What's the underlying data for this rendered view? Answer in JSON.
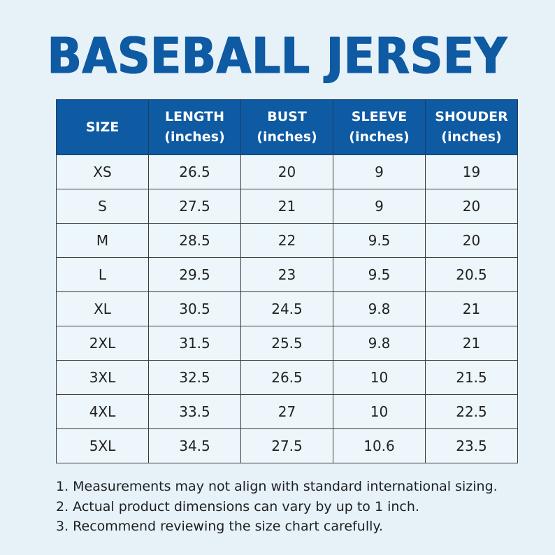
{
  "title": "BASEBALL JERSEY",
  "table": {
    "headers": [
      {
        "label": "SIZE",
        "unit": ""
      },
      {
        "label": "LENGTH",
        "unit": "(inches)"
      },
      {
        "label": "BUST",
        "unit": "(inches)"
      },
      {
        "label": "SLEEVE",
        "unit": "(inches)"
      },
      {
        "label": "SHOUDER",
        "unit": "(inches)"
      }
    ],
    "rows": [
      [
        "XS",
        "26.5",
        "20",
        "9",
        "19"
      ],
      [
        "S",
        "27.5",
        "21",
        "9",
        "20"
      ],
      [
        "M",
        "28.5",
        "22",
        "9.5",
        "20"
      ],
      [
        "L",
        "29.5",
        "23",
        "9.5",
        "20.5"
      ],
      [
        "XL",
        "30.5",
        "24.5",
        "9.8",
        "21"
      ],
      [
        "2XL",
        "31.5",
        "25.5",
        "9.8",
        "21"
      ],
      [
        "3XL",
        "32.5",
        "26.5",
        "10",
        "21.5"
      ],
      [
        "4XL",
        "33.5",
        "27",
        "10",
        "22.5"
      ],
      [
        "5XL",
        "34.5",
        "27.5",
        "10.6",
        "23.5"
      ]
    ]
  },
  "notes": [
    "1. Measurements may not align with standard international sizing.",
    "2. Actual product dimensions can vary by up to 1 inch.",
    "3. Recommend reviewing the size chart carefully."
  ],
  "colors": {
    "background": "#e6f2f8",
    "accent": "#0e5aa3",
    "cell": "#ecf6fb"
  }
}
